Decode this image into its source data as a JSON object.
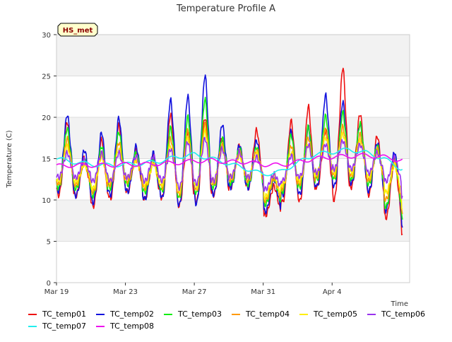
{
  "chart_data": {
    "type": "line",
    "title": "Temperature Profile A",
    "xlabel": "Time",
    "ylabel": "Temperature (C)",
    "badge": "HS_met",
    "ylim": [
      0,
      30
    ],
    "yticks": [
      "0",
      "5",
      "10",
      "15",
      "20",
      "25",
      "30"
    ],
    "xlim": [
      0,
      20.5
    ],
    "xticks": [
      {
        "label": "Mar 19",
        "day": 0
      },
      {
        "label": "Mar 23",
        "day": 4
      },
      {
        "label": "Mar 27",
        "day": 8
      },
      {
        "label": "Mar 31",
        "day": 12
      },
      {
        "label": "Apr 4",
        "day": 16
      }
    ],
    "grid": true,
    "legend_position": "bottom",
    "series": [
      {
        "name": "TC_temp01",
        "color": "#ee1111",
        "daily_max": [
          20.5,
          15.5,
          18,
          20,
          16.5,
          15.5,
          21.5,
          19,
          21,
          18,
          17,
          19.5,
          11.5,
          20.5,
          22.5,
          19,
          28,
          21.5,
          18.5,
          15.5,
          12.5
        ],
        "daily_min": [
          10,
          10,
          8.5,
          9.5,
          10.5,
          9.5,
          9.5,
          8.5,
          9,
          10,
          11,
          11,
          7.5,
          9,
          9,
          11,
          9,
          11,
          10,
          7,
          4.5
        ],
        "avg": [
          14,
          13.5,
          13.3,
          13.6,
          13.8,
          13.5,
          14.2,
          13.8,
          14.5,
          14.2,
          14.8,
          14.6,
          11.5,
          13.5,
          14.5,
          14.6,
          15.5,
          14.8,
          14.5,
          13,
          11
        ]
      },
      {
        "name": "TC_temp02",
        "color": "#1111dd",
        "daily_max": [
          21.5,
          16.5,
          19,
          21,
          17,
          16,
          23.5,
          24,
          27,
          20,
          17,
          18,
          12.5,
          19,
          19.5,
          24,
          23,
          20,
          17.5,
          16.5,
          13
        ],
        "daily_min": [
          10.5,
          10,
          9,
          10,
          10.5,
          9.5,
          9.5,
          8.5,
          8.5,
          10,
          11,
          11,
          8,
          10,
          10,
          11,
          11,
          11.5,
          10.5,
          8,
          5.5
        ],
        "avg": [
          14.2,
          13.6,
          13.4,
          13.8,
          13.8,
          13.5,
          14.3,
          14,
          15,
          14.3,
          14.8,
          14.4,
          11.8,
          13.6,
          14.5,
          15,
          15.3,
          15,
          14.6,
          13.2,
          11.5
        ]
      },
      {
        "name": "TC_temp03",
        "color": "#11ee11",
        "daily_max": [
          19.5,
          15,
          17,
          19,
          16,
          15,
          19.5,
          21,
          23.5,
          18,
          16.5,
          17,
          12.5,
          18.5,
          19.5,
          21,
          21.5,
          20,
          17,
          15.5,
          12
        ],
        "daily_min": [
          11,
          11,
          10,
          11,
          11.5,
          10.5,
          10.5,
          9.5,
          10,
          11,
          11.5,
          11.5,
          9,
          10.5,
          11,
          12,
          12,
          12,
          11.5,
          8.5,
          7
        ],
        "avg": [
          14.1,
          13.7,
          13.5,
          13.9,
          14,
          13.7,
          14.3,
          14.1,
          15,
          14.4,
          14.8,
          14.5,
          12.2,
          13.8,
          14.6,
          15.1,
          15.3,
          15.1,
          14.6,
          13.3,
          11.8
        ]
      },
      {
        "name": "TC_temp04",
        "color": "#ff9900",
        "daily_max": [
          18,
          14.5,
          16,
          17.5,
          15,
          14.5,
          18,
          19,
          20,
          17,
          16,
          16.5,
          12.5,
          17,
          18,
          19,
          19.5,
          18.5,
          16.5,
          15,
          12.5
        ],
        "daily_min": [
          11.5,
          11.5,
          10.5,
          11.5,
          12,
          11,
          11,
          10,
          10.5,
          11.5,
          12,
          12,
          9.5,
          11,
          11.5,
          12.5,
          12.5,
          12.5,
          12,
          9.5,
          8
        ],
        "avg": [
          14.1,
          13.8,
          13.6,
          13.9,
          14,
          13.8,
          14.3,
          14.1,
          14.9,
          14.4,
          14.8,
          14.5,
          12.3,
          13.9,
          14.6,
          15.1,
          15.3,
          15.1,
          14.6,
          13.4,
          12
        ]
      },
      {
        "name": "TC_temp05",
        "color": "#ffee00",
        "daily_max": [
          17,
          14.5,
          15.5,
          16.5,
          15,
          14.5,
          17,
          18,
          19,
          16.5,
          15.5,
          16,
          13,
          16,
          17,
          18,
          18.5,
          17.5,
          16,
          14.5,
          13
        ],
        "daily_min": [
          12,
          12,
          11,
          12,
          12.5,
          11.5,
          11.5,
          10.5,
          11,
          12,
          12.5,
          12.5,
          10,
          11.5,
          12,
          13,
          13,
          13,
          12.5,
          10.5,
          8.5
        ],
        "avg": [
          14.1,
          13.8,
          13.6,
          14,
          14.1,
          13.8,
          14.3,
          14.1,
          14.8,
          14.4,
          14.7,
          14.5,
          12.5,
          14,
          14.6,
          15.1,
          15.3,
          15.1,
          14.7,
          13.5,
          12.2
        ]
      },
      {
        "name": "TC_temp06",
        "color": "#9933ee",
        "daily_max": [
          16,
          15,
          16,
          16,
          15.5,
          15.5,
          16.5,
          17.5,
          18,
          16.5,
          16,
          15.5,
          13,
          15.5,
          17,
          17,
          17.5,
          17,
          16,
          15.5,
          13.5
        ],
        "daily_min": [
          12.5,
          12.5,
          12,
          12,
          12.5,
          12,
          12,
          11,
          11.5,
          12,
          12.5,
          12.5,
          11,
          12,
          12.5,
          13,
          13.5,
          13.5,
          13,
          12,
          10
        ],
        "avg": [
          14.2,
          13.9,
          13.8,
          14,
          14.1,
          13.9,
          14.3,
          14.2,
          14.7,
          14.3,
          14.6,
          14.4,
          12.9,
          14.1,
          14.8,
          15.1,
          15.4,
          15.3,
          14.8,
          13.9,
          12.5
        ]
      },
      {
        "name": "TC_temp07",
        "color": "#22eeee",
        "avg": [
          15,
          14.6,
          14.3,
          14.2,
          14.3,
          14.4,
          14.7,
          15.2,
          15.5,
          15,
          14.4,
          13.8,
          13.1,
          13.4,
          14.5,
          15.5,
          15.8,
          16.1,
          15.7,
          15,
          13.8
        ]
      },
      {
        "name": "TC_temp08",
        "color": "#ee11ee",
        "avg": [
          14.1,
          14.2,
          14.2,
          14.2,
          14.3,
          14.3,
          14.4,
          14.5,
          14.7,
          14.8,
          14.6,
          14.6,
          14.3,
          14.2,
          14.6,
          15,
          15.2,
          15.3,
          15.4,
          15.2,
          14.8
        ]
      }
    ]
  }
}
